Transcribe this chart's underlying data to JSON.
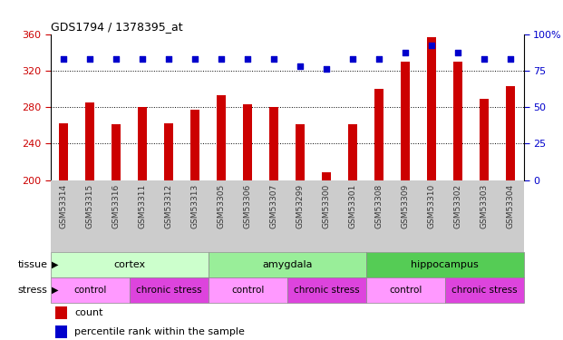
{
  "title": "GDS1794 / 1378395_at",
  "samples": [
    "GSM53314",
    "GSM53315",
    "GSM53316",
    "GSM53311",
    "GSM53312",
    "GSM53313",
    "GSM53305",
    "GSM53306",
    "GSM53307",
    "GSM53299",
    "GSM53300",
    "GSM53301",
    "GSM53308",
    "GSM53309",
    "GSM53310",
    "GSM53302",
    "GSM53303",
    "GSM53304"
  ],
  "counts": [
    262,
    285,
    261,
    280,
    262,
    277,
    293,
    283,
    280,
    261,
    209,
    261,
    300,
    330,
    357,
    330,
    289,
    303
  ],
  "percentile_ranks": [
    83,
    83,
    83,
    83,
    83,
    83,
    83,
    83,
    83,
    78,
    76,
    83,
    83,
    87,
    92,
    87,
    83,
    83
  ],
  "ymin": 200,
  "ymax": 360,
  "y2min": 0,
  "y2max": 100,
  "yticks": [
    200,
    240,
    280,
    320,
    360
  ],
  "y2ticks": [
    0,
    25,
    50,
    75,
    100
  ],
  "bar_color": "#cc0000",
  "dot_color": "#0000cc",
  "tissue_groups": [
    {
      "label": "cortex",
      "start": 0,
      "end": 6,
      "color": "#ccffcc"
    },
    {
      "label": "amygdala",
      "start": 6,
      "end": 12,
      "color": "#99ee99"
    },
    {
      "label": "hippocampus",
      "start": 12,
      "end": 18,
      "color": "#55cc55"
    }
  ],
  "stress_groups": [
    {
      "label": "control",
      "start": 0,
      "end": 3,
      "color": "#ff99ff"
    },
    {
      "label": "chronic stress",
      "start": 3,
      "end": 6,
      "color": "#dd44dd"
    },
    {
      "label": "control",
      "start": 6,
      "end": 9,
      "color": "#ff99ff"
    },
    {
      "label": "chronic stress",
      "start": 9,
      "end": 12,
      "color": "#dd44dd"
    },
    {
      "label": "control",
      "start": 12,
      "end": 15,
      "color": "#ff99ff"
    },
    {
      "label": "chronic stress",
      "start": 15,
      "end": 18,
      "color": "#dd44dd"
    }
  ],
  "tick_label_color_left": "#cc0000",
  "tick_label_color_right": "#0000cc",
  "xtick_bg": "#cccccc"
}
